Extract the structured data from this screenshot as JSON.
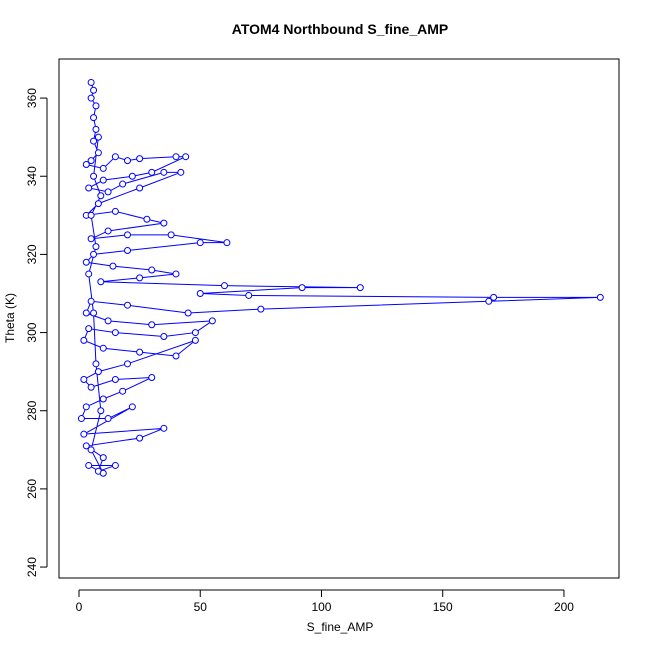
{
  "chart_data": {
    "type": "line",
    "markers": true,
    "title": "ATOM4 Northbound S_fine_AMP",
    "x_label": "S_fine_AMP",
    "y_label": "Theta (K)",
    "color": "#0000ff",
    "xlim": [
      -8.25,
      222.7
    ],
    "ylim": [
      237.2,
      370
    ],
    "xticks": [
      0,
      50,
      100,
      150,
      200
    ],
    "yticks": [
      240,
      260,
      280,
      300,
      320,
      340,
      360
    ],
    "grid": false,
    "x": [
      5,
      6,
      5,
      7,
      6,
      7,
      6,
      8,
      5,
      3,
      10,
      15,
      20,
      25,
      40,
      44,
      30,
      22,
      10,
      4,
      12,
      18,
      35,
      42,
      25,
      8,
      3,
      15,
      28,
      35,
      12,
      5,
      20,
      38,
      61,
      50,
      20,
      6,
      3,
      14,
      30,
      40,
      25,
      9,
      60,
      116,
      92,
      50,
      70,
      171,
      215,
      169,
      75,
      45,
      20,
      5,
      3,
      12,
      30,
      55,
      48,
      35,
      15,
      4,
      2,
      10,
      25,
      40,
      48,
      20,
      8,
      2,
      5,
      15,
      30,
      18,
      10,
      3,
      1,
      12,
      22,
      2,
      35,
      25,
      3,
      10,
      8,
      15,
      4,
      10,
      5,
      9,
      7,
      6,
      4,
      7,
      5,
      9,
      6,
      8
    ],
    "values": [
      364,
      362,
      360,
      358,
      355,
      352,
      349,
      346,
      344,
      343,
      342,
      345,
      344,
      344.5,
      345,
      345,
      341,
      340,
      339,
      337,
      336,
      338,
      341,
      341,
      337,
      333,
      330,
      331,
      329,
      328,
      326,
      324,
      325,
      325,
      323,
      323,
      321,
      320,
      318,
      317,
      316,
      315,
      314,
      313,
      312,
      311.5,
      311.5,
      310,
      309.5,
      309,
      309,
      308,
      306,
      305,
      307,
      308,
      305,
      303,
      302,
      303,
      300,
      299,
      300,
      301,
      298,
      296,
      295,
      294,
      298,
      292,
      290,
      288,
      286,
      288,
      288.5,
      285,
      283,
      281,
      278,
      278,
      281,
      274,
      275.5,
      273,
      271,
      268,
      264.5,
      266,
      266,
      264,
      270,
      280,
      292,
      305,
      315,
      322,
      330,
      335,
      340,
      350
    ]
  }
}
